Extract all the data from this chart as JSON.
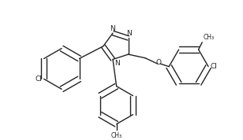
{
  "background_color": "#ffffff",
  "line_color": "#222222",
  "line_width": 1.1,
  "font_size": 6.5,
  "figsize": [
    3.08,
    1.78
  ],
  "dpi": 100,
  "xlim": [
    0,
    3.08
  ],
  "ylim": [
    0,
    1.78
  ]
}
